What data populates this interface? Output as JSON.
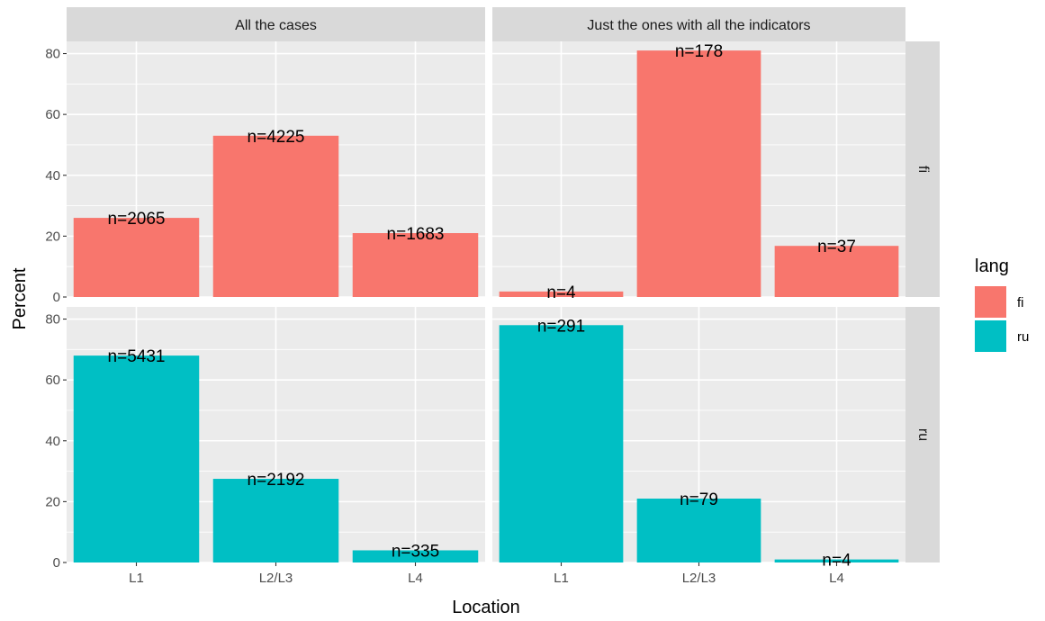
{
  "chart_data": {
    "type": "bar",
    "xlabel": "Location",
    "ylabel": "Percent",
    "ylim": [
      0,
      84
    ],
    "yticks": [
      0,
      20,
      40,
      60,
      80
    ],
    "categories": [
      "L1",
      "L2/L3",
      "L4"
    ],
    "grid": true,
    "legend": {
      "title": "lang",
      "placement": "right",
      "entries": [
        {
          "key": "fi",
          "label": "fi",
          "color": "#F8766D"
        },
        {
          "key": "ru",
          "label": "ru",
          "color": "#00BFC4"
        }
      ]
    },
    "col_facets": [
      "All the cases",
      "Just the ones with all the indicators"
    ],
    "row_facets": [
      "fi",
      "ru"
    ],
    "panels": [
      {
        "col": 0,
        "row": 0,
        "lang": "fi",
        "values": [
          26,
          53,
          21
        ],
        "labels": [
          "n=2065",
          "n=4225",
          "n=1683"
        ]
      },
      {
        "col": 1,
        "row": 0,
        "lang": "fi",
        "values": [
          1.8,
          81,
          16.8
        ],
        "labels": [
          "n=4",
          "n=178",
          "n=37"
        ]
      },
      {
        "col": 0,
        "row": 1,
        "lang": "ru",
        "values": [
          68,
          27.5,
          4
        ],
        "labels": [
          "n=5431",
          "n=2192",
          "n=335"
        ]
      },
      {
        "col": 1,
        "row": 1,
        "lang": "ru",
        "values": [
          78,
          21,
          1
        ],
        "labels": [
          "n=291",
          "n=79",
          "n=4"
        ]
      }
    ]
  }
}
